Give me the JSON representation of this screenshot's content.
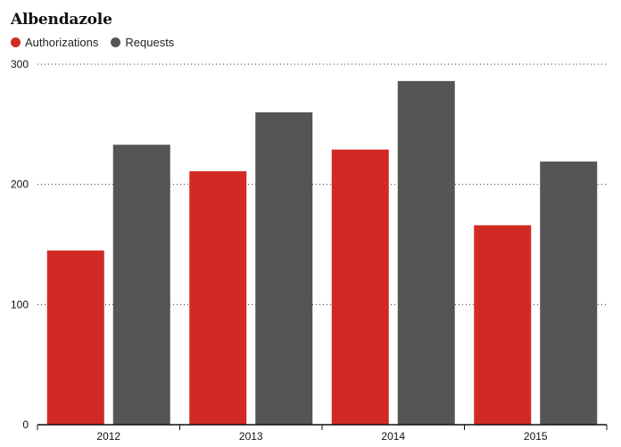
{
  "chart_data": {
    "type": "bar",
    "title": "Albendazole",
    "categories": [
      "2012",
      "2013",
      "2014",
      "2015"
    ],
    "series": [
      {
        "name": "Authorizations",
        "color": "#d12a24",
        "values": [
          145,
          211,
          229,
          166
        ]
      },
      {
        "name": "Requests",
        "color": "#555555",
        "values": [
          233,
          260,
          286,
          219
        ]
      }
    ],
    "yticks": [
      0,
      100,
      200,
      300
    ],
    "ylim": [
      0,
      300
    ],
    "grid": "dotted horizontal",
    "legend_position": "top-left"
  }
}
